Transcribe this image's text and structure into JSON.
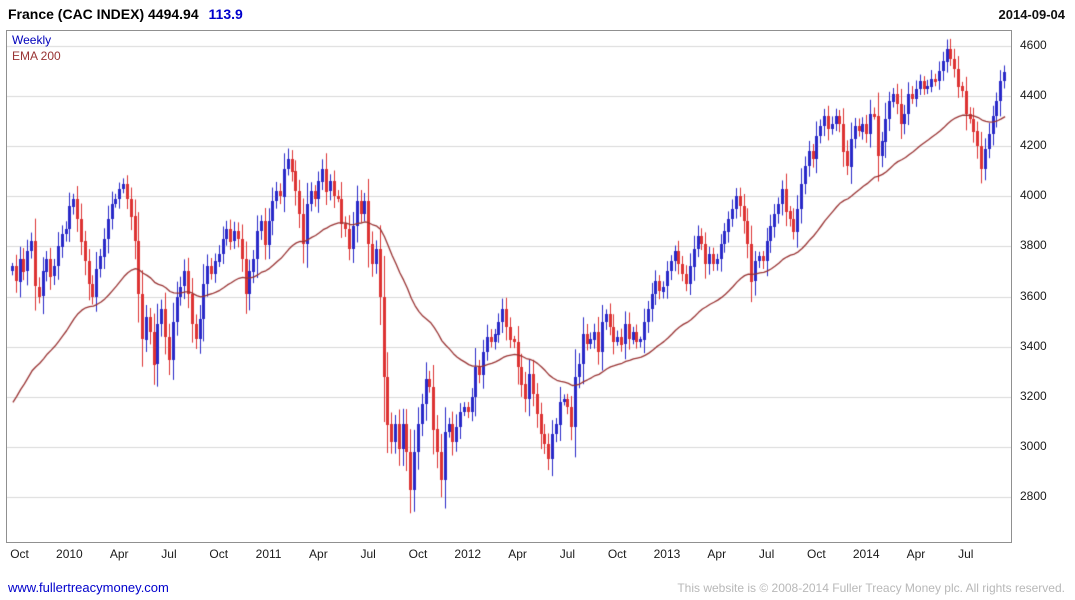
{
  "header": {
    "title": "France (CAC INDEX) 4494.94",
    "change": "113.9",
    "date": "2014-09-04"
  },
  "legend": {
    "series": "Weekly",
    "ema": "EMA 200"
  },
  "footer": {
    "link": "www.fullertreacymoney.com",
    "copyright": "This website is © 2008-2014 Fuller Treacy Money plc. All rights reserved."
  },
  "colors": {
    "up": "#2929c8",
    "down": "#dd3333",
    "ema": "#993333",
    "grid": "#d9d9d9",
    "border": "#909090",
    "accent_blue": "#0000cc",
    "muted": "#b8b8b8"
  },
  "chart_data": {
    "type": "candlestick",
    "interval": "weekly",
    "instrument": "France (CAC INDEX)",
    "last_value": 4494.94,
    "change": 113.9,
    "as_of_date": "2014-09-04",
    "title": "France (CAC INDEX) 4494.94 113.9",
    "legend": [
      "Weekly",
      "EMA 200"
    ],
    "legend_position": "top-left",
    "grid": "horizontal-only",
    "ylim": [
      2620,
      4660
    ],
    "y_ticks": [
      2800,
      3000,
      3200,
      3400,
      3600,
      3800,
      4000,
      4200,
      4400,
      4600
    ],
    "x_ticks": [
      {
        "index": 2,
        "label": "Oct"
      },
      {
        "index": 15,
        "label": "2010"
      },
      {
        "index": 28,
        "label": "Apr"
      },
      {
        "index": 41,
        "label": "Jul"
      },
      {
        "index": 54,
        "label": "Oct"
      },
      {
        "index": 67,
        "label": "2011"
      },
      {
        "index": 80,
        "label": "Apr"
      },
      {
        "index": 93,
        "label": "Jul"
      },
      {
        "index": 106,
        "label": "Oct"
      },
      {
        "index": 119,
        "label": "2012"
      },
      {
        "index": 132,
        "label": "Apr"
      },
      {
        "index": 145,
        "label": "Jul"
      },
      {
        "index": 158,
        "label": "Oct"
      },
      {
        "index": 171,
        "label": "2013"
      },
      {
        "index": 184,
        "label": "Apr"
      },
      {
        "index": 197,
        "label": "Jul"
      },
      {
        "index": 210,
        "label": "Oct"
      },
      {
        "index": 223,
        "label": "2014"
      },
      {
        "index": 236,
        "label": "Apr"
      },
      {
        "index": 249,
        "label": "Jul"
      }
    ],
    "ema_label": "EMA 200",
    "ema_period_weeks": 40,
    "ema_seed": 3150,
    "weekly_closes": [
      3720,
      3660,
      3750,
      3700,
      3780,
      3820,
      3640,
      3600,
      3700,
      3750,
      3680,
      3720,
      3800,
      3850,
      3870,
      3960,
      3990,
      3910,
      3820,
      3740,
      3650,
      3600,
      3710,
      3760,
      3830,
      3910,
      3970,
      3990,
      4030,
      4050,
      3990,
      3920,
      3820,
      3610,
      3430,
      3520,
      3460,
      3330,
      3490,
      3550,
      3440,
      3350,
      3500,
      3600,
      3640,
      3700,
      3610,
      3490,
      3430,
      3510,
      3650,
      3720,
      3690,
      3740,
      3770,
      3830,
      3870,
      3820,
      3860,
      3830,
      3750,
      3610,
      3700,
      3750,
      3860,
      3900,
      3805,
      3900,
      3980,
      4020,
      4000,
      4110,
      4150,
      4100,
      4020,
      3930,
      3810,
      3970,
      4020,
      3990,
      4060,
      4110,
      4020,
      4060,
      4000,
      3990,
      3890,
      3870,
      3790,
      3880,
      3980,
      3930,
      3980,
      3810,
      3730,
      3790,
      3600,
      3280,
      3090,
      3020,
      3090,
      2990,
      3090,
      2980,
      2830,
      2980,
      3090,
      3170,
      3270,
      3240,
      3070,
      2980,
      2870,
      3060,
      3090,
      3020,
      3080,
      3140,
      3160,
      3140,
      3200,
      3320,
      3290,
      3380,
      3440,
      3420,
      3450,
      3500,
      3550,
      3480,
      3430,
      3420,
      3320,
      3250,
      3190,
      3290,
      3210,
      3130,
      3050,
      3010,
      2950,
      3050,
      3090,
      3180,
      3190,
      3160,
      3080,
      3280,
      3330,
      3450,
      3410,
      3430,
      3460,
      3380,
      3500,
      3530,
      3480,
      3420,
      3440,
      3410,
      3490,
      3430,
      3460,
      3420,
      3430,
      3500,
      3550,
      3610,
      3660,
      3620,
      3640,
      3700,
      3740,
      3780,
      3730,
      3690,
      3650,
      3720,
      3790,
      3840,
      3810,
      3730,
      3770,
      3730,
      3750,
      3810,
      3860,
      3910,
      3950,
      4000,
      3960,
      3900,
      3810,
      3660,
      3740,
      3760,
      3740,
      3820,
      3880,
      3930,
      3970,
      4030,
      3940,
      3910,
      3860,
      3950,
      4050,
      4120,
      4180,
      4150,
      4240,
      4280,
      4320,
      4270,
      4290,
      4320,
      4290,
      4180,
      4120,
      4230,
      4280,
      4260,
      4290,
      4250,
      4330,
      4320,
      4160,
      4220,
      4310,
      4380,
      4410,
      4370,
      4290,
      4330,
      4410,
      4390,
      4430,
      4460,
      4430,
      4440,
      4470,
      4460,
      4500,
      4540,
      4590,
      4550,
      4510,
      4440,
      4420,
      4330,
      4310,
      4260,
      4200,
      4110,
      4190,
      4250,
      4320,
      4380,
      4460,
      4494.94
    ]
  }
}
